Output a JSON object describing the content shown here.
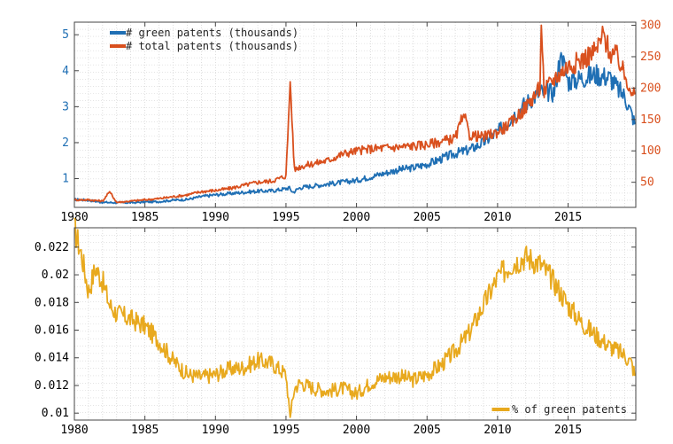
{
  "chart_data": [
    {
      "type": "line",
      "title": "",
      "xlabel": "",
      "ylabel": "",
      "y2label": "",
      "xlim": [
        1980,
        2019.8
      ],
      "ylim": [
        0.2,
        5.35
      ],
      "y2lim": [
        10,
        305
      ],
      "x_ticks": [
        1980,
        1985,
        1990,
        1995,
        2000,
        2005,
        2010,
        2015
      ],
      "y_ticks": [
        1,
        2,
        3,
        4,
        5
      ],
      "y2_ticks": [
        50,
        100,
        150,
        200,
        250,
        300
      ],
      "grid": true,
      "legend_position": "top-left",
      "series": [
        {
          "name": "# green patents (thousands)",
          "axis": "left",
          "color": "#1f6fb4",
          "x": [
            1980,
            1981,
            1982,
            1983,
            1984,
            1985,
            1986,
            1987,
            1988,
            1989,
            1990,
            1991,
            1992,
            1993,
            1994,
            1995,
            1995.2,
            1995.5,
            1996,
            1997,
            1998,
            1999,
            2000,
            2001,
            2002,
            2003,
            2004,
            2005,
            2006,
            2007,
            2008,
            2009,
            2010,
            2011,
            2012,
            2013,
            2014,
            2014.5,
            2015,
            2016,
            2017,
            2018,
            2018.5,
            2019,
            2019.5,
            2019.8
          ],
          "values": [
            0.42,
            0.4,
            0.34,
            0.33,
            0.33,
            0.35,
            0.36,
            0.4,
            0.42,
            0.5,
            0.55,
            0.58,
            0.62,
            0.65,
            0.66,
            0.72,
            0.75,
            0.62,
            0.75,
            0.8,
            0.85,
            0.9,
            0.95,
            1.05,
            1.15,
            1.25,
            1.3,
            1.4,
            1.55,
            1.7,
            1.8,
            2.0,
            2.3,
            2.7,
            3.1,
            3.4,
            3.4,
            4.5,
            3.7,
            3.8,
            3.9,
            3.8,
            3.5,
            3.3,
            2.8,
            2.45
          ]
        },
        {
          "name": "# total patents (thousands)",
          "axis": "right",
          "color": "#d9501e",
          "x": [
            1980,
            1981,
            1982,
            1982.5,
            1983,
            1984,
            1985,
            1986,
            1987,
            1988,
            1989,
            1990,
            1991,
            1992,
            1993,
            1994,
            1995,
            1995.3,
            1995.6,
            1996,
            1997,
            1998,
            1999,
            2000,
            2001,
            2002,
            2003,
            2004,
            2005,
            2006,
            2007,
            2007.6,
            2008,
            2009,
            2010,
            2011,
            2012,
            2013,
            2013.1,
            2013.3,
            2014,
            2015,
            2016,
            2017,
            2017.5,
            2018,
            2018.5,
            2019,
            2019.8
          ],
          "values": [
            22,
            22,
            20,
            35,
            18,
            20,
            22,
            24,
            27,
            30,
            35,
            37,
            40,
            45,
            50,
            52,
            60,
            210,
            70,
            75,
            80,
            85,
            95,
            100,
            103,
            105,
            106,
            108,
            110,
            115,
            120,
            158,
            125,
            122,
            130,
            145,
            170,
            200,
            300,
            195,
            215,
            235,
            245,
            260,
            285,
            255,
            250,
            220,
            185
          ]
        }
      ]
    },
    {
      "type": "line",
      "title": "",
      "xlabel": "",
      "ylabel": "",
      "xlim": [
        1980,
        2019.8
      ],
      "ylim": [
        0.0095,
        0.0234
      ],
      "x_ticks": [
        1980,
        1985,
        1990,
        1995,
        2000,
        2005,
        2010,
        2015
      ],
      "y_ticks": [
        0.01,
        0.012,
        0.014,
        0.016,
        0.018,
        0.02,
        0.022
      ],
      "grid": true,
      "legend_position": "bottom-right",
      "series": [
        {
          "name": "% of green patents",
          "color": "#e8a91e",
          "x": [
            1980,
            1980.5,
            1981,
            1981.5,
            1982,
            1982.5,
            1983,
            1984,
            1985,
            1986,
            1987,
            1988,
            1989,
            1990,
            1991,
            1992,
            1993,
            1994,
            1995,
            1995.3,
            1995.6,
            1996,
            1997,
            1998,
            1999,
            2000,
            2001,
            2002,
            2003,
            2004,
            2005,
            2006,
            2007,
            2008,
            2009,
            2010,
            2011,
            2012,
            2013,
            2014,
            2015,
            2016,
            2017,
            2018,
            2018.5,
            2019,
            2019.5,
            2019.8
          ],
          "values": [
            0.0233,
            0.0215,
            0.0188,
            0.0205,
            0.0195,
            0.0178,
            0.0172,
            0.0168,
            0.0163,
            0.0152,
            0.0138,
            0.0128,
            0.0126,
            0.0128,
            0.0132,
            0.0133,
            0.0138,
            0.0136,
            0.0128,
            0.0097,
            0.0118,
            0.0122,
            0.0118,
            0.0116,
            0.0118,
            0.0114,
            0.0122,
            0.0126,
            0.0127,
            0.0124,
            0.0128,
            0.0135,
            0.0145,
            0.0158,
            0.0178,
            0.0198,
            0.0208,
            0.0213,
            0.0208,
            0.0195,
            0.0178,
            0.0165,
            0.0156,
            0.0148,
            0.0145,
            0.0142,
            0.0136,
            0.0125
          ]
        }
      ]
    }
  ]
}
